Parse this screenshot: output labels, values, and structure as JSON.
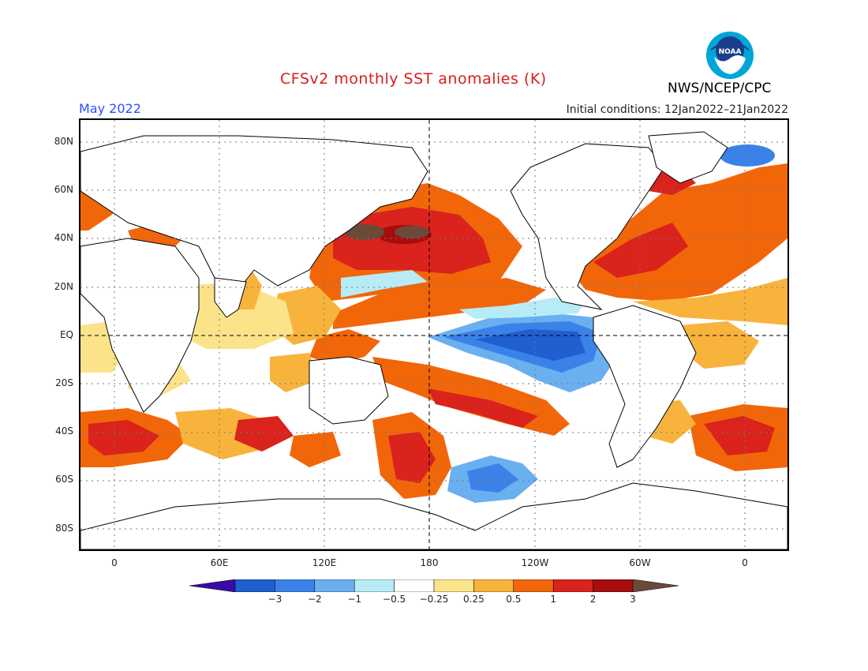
{
  "header": {
    "title": "CFSv2 monthly SST anomalies (K)",
    "period": "May 2022",
    "initial_conditions": "Initial conditions: 12Jan2022–21Jan2022",
    "agency": "NWS/NCEP/CPC",
    "logo_text": "NOAA"
  },
  "colors": {
    "title": "#d81e1e",
    "period": "#2850ff",
    "land": "#ffffff",
    "coast": "#000000",
    "neg3": "#3a0aa8",
    "neg2": "#1f5fd0",
    "neg1": "#3b82e8",
    "neg05": "#6aaff0",
    "neg025": "#b7ecf6",
    "zero": "#ffffff",
    "pos025": "#fbe38a",
    "pos05": "#f8b33c",
    "pos1": "#f2660a",
    "pos2": "#d9231c",
    "pos3": "#a80d0d",
    "pos4": "#6b4a3a"
  },
  "axes": {
    "lat_labels": [
      "80N",
      "60N",
      "40N",
      "20N",
      "EQ",
      "20S",
      "40S",
      "60S",
      "80S"
    ],
    "lon_labels": [
      "0",
      "60E",
      "120E",
      "180",
      "120W",
      "60W",
      "0"
    ]
  },
  "colorbar": {
    "labels": [
      "−3",
      "−2",
      "−1",
      "−0.5",
      "−0.25",
      "0.25",
      "0.5",
      "1",
      "2",
      "3"
    ],
    "bins": [
      "neg3",
      "neg2",
      "neg1",
      "neg05",
      "neg025",
      "zero",
      "pos025",
      "pos05",
      "pos1",
      "pos2",
      "pos3",
      "pos4"
    ]
  }
}
